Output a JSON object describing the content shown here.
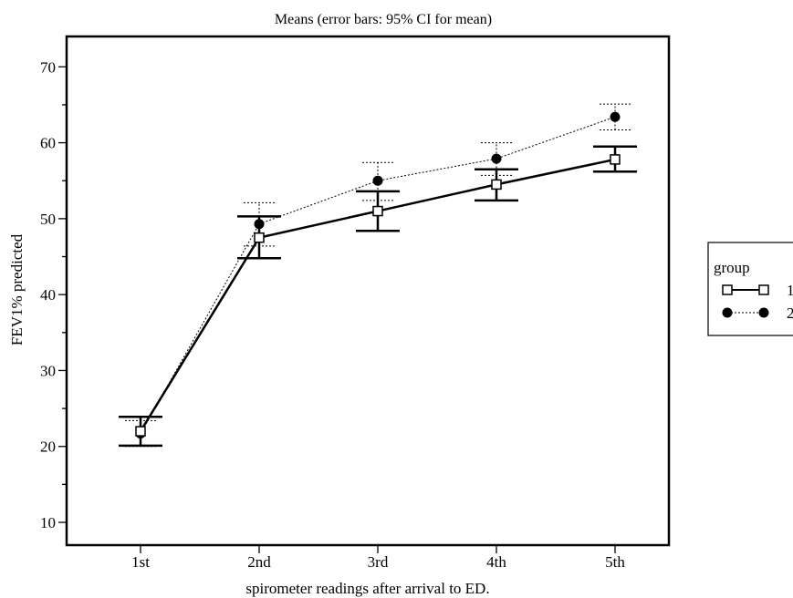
{
  "chart_data": {
    "type": "line",
    "title": "Means  (error bars: 95% CI for mean)",
    "xlabel": "spirometer readings after arrival to ED.",
    "ylabel": "FEV1% predicted",
    "categories": [
      "1st",
      "2nd",
      "3rd",
      "4th",
      "5th"
    ],
    "ylim": [
      7,
      74
    ],
    "yticks": [
      10,
      20,
      30,
      40,
      50,
      60,
      70
    ],
    "grid": false,
    "legend": {
      "title": "group",
      "placement": "right"
    },
    "series": [
      {
        "name": "1",
        "marker": "open-square",
        "line": "solid",
        "values": [
          22.0,
          47.5,
          51.0,
          54.5,
          57.8
        ],
        "ci_lower": [
          20.1,
          44.8,
          48.4,
          52.4,
          56.2
        ],
        "ci_upper": [
          23.9,
          50.3,
          53.6,
          56.5,
          59.5
        ]
      },
      {
        "name": "2",
        "marker": "filled-circle",
        "line": "dotted",
        "values": [
          21.7,
          49.3,
          55.0,
          57.9,
          63.4
        ],
        "ci_lower": [
          20.0,
          46.4,
          52.4,
          55.7,
          61.7
        ],
        "ci_upper": [
          23.4,
          52.1,
          57.4,
          60.0,
          65.1
        ]
      }
    ]
  }
}
